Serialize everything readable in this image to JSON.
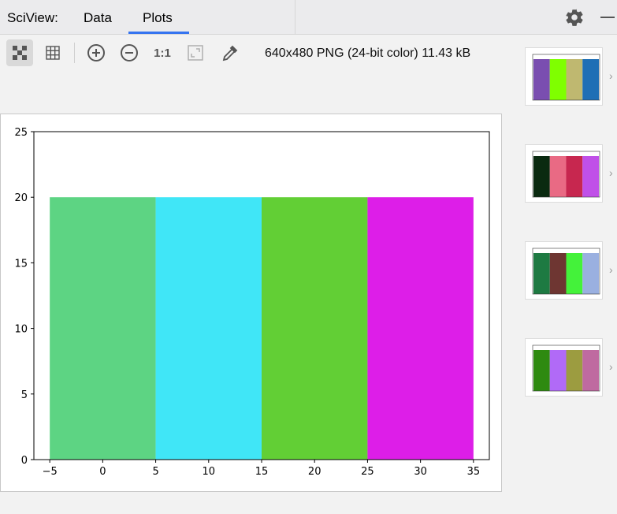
{
  "header": {
    "title": "SciView:",
    "tabs": [
      {
        "label": "Data"
      },
      {
        "label": "Plots"
      }
    ],
    "active_tab": "Plots",
    "settings_icon": "gear-icon",
    "minimize_icon": "minimize-icon"
  },
  "toolbar": {
    "actual_size_label": "1:1",
    "image_info": "640x480 PNG (24-bit color) 11.43 kB",
    "icons": [
      "chessboard-icon",
      "grid-icon",
      "zoom-in-icon",
      "zoom-out-icon",
      "actual-size-icon",
      "fit-window-icon",
      "color-picker-icon"
    ]
  },
  "chart_data": {
    "type": "bar",
    "x": [
      0,
      10,
      20,
      30
    ],
    "values": [
      20,
      20,
      20,
      20
    ],
    "bar_width": 10,
    "colors": [
      "#5dd483",
      "#40e6f7",
      "#62cf35",
      "#dd1ee8"
    ],
    "xlim": [
      -6.5,
      36.5
    ],
    "ylim": [
      0,
      25
    ],
    "xticks": [
      -5,
      0,
      5,
      10,
      15,
      20,
      25,
      30,
      35
    ],
    "yticks": [
      0,
      5,
      10,
      15,
      20,
      25
    ],
    "xtick_labels": [
      "−5",
      "0",
      "5",
      "10",
      "15",
      "20",
      "25",
      "30",
      "35"
    ],
    "ytick_labels": [
      "0",
      "5",
      "10",
      "15",
      "20",
      "25"
    ],
    "grid": false
  },
  "thumbnails": [
    {
      "colors": [
        "#7a4eb0",
        "#7fff00",
        "#bfb870",
        "#1f6fb5"
      ]
    },
    {
      "colors": [
        "#0a2a10",
        "#e96a84",
        "#c7274f",
        "#c050e8"
      ]
    },
    {
      "colors": [
        "#1e7a42",
        "#6e3632",
        "#44f23a",
        "#9ab0e0"
      ]
    },
    {
      "colors": [
        "#2e8a10",
        "#b16af7",
        "#9c9c40",
        "#bf6aa0"
      ]
    }
  ]
}
